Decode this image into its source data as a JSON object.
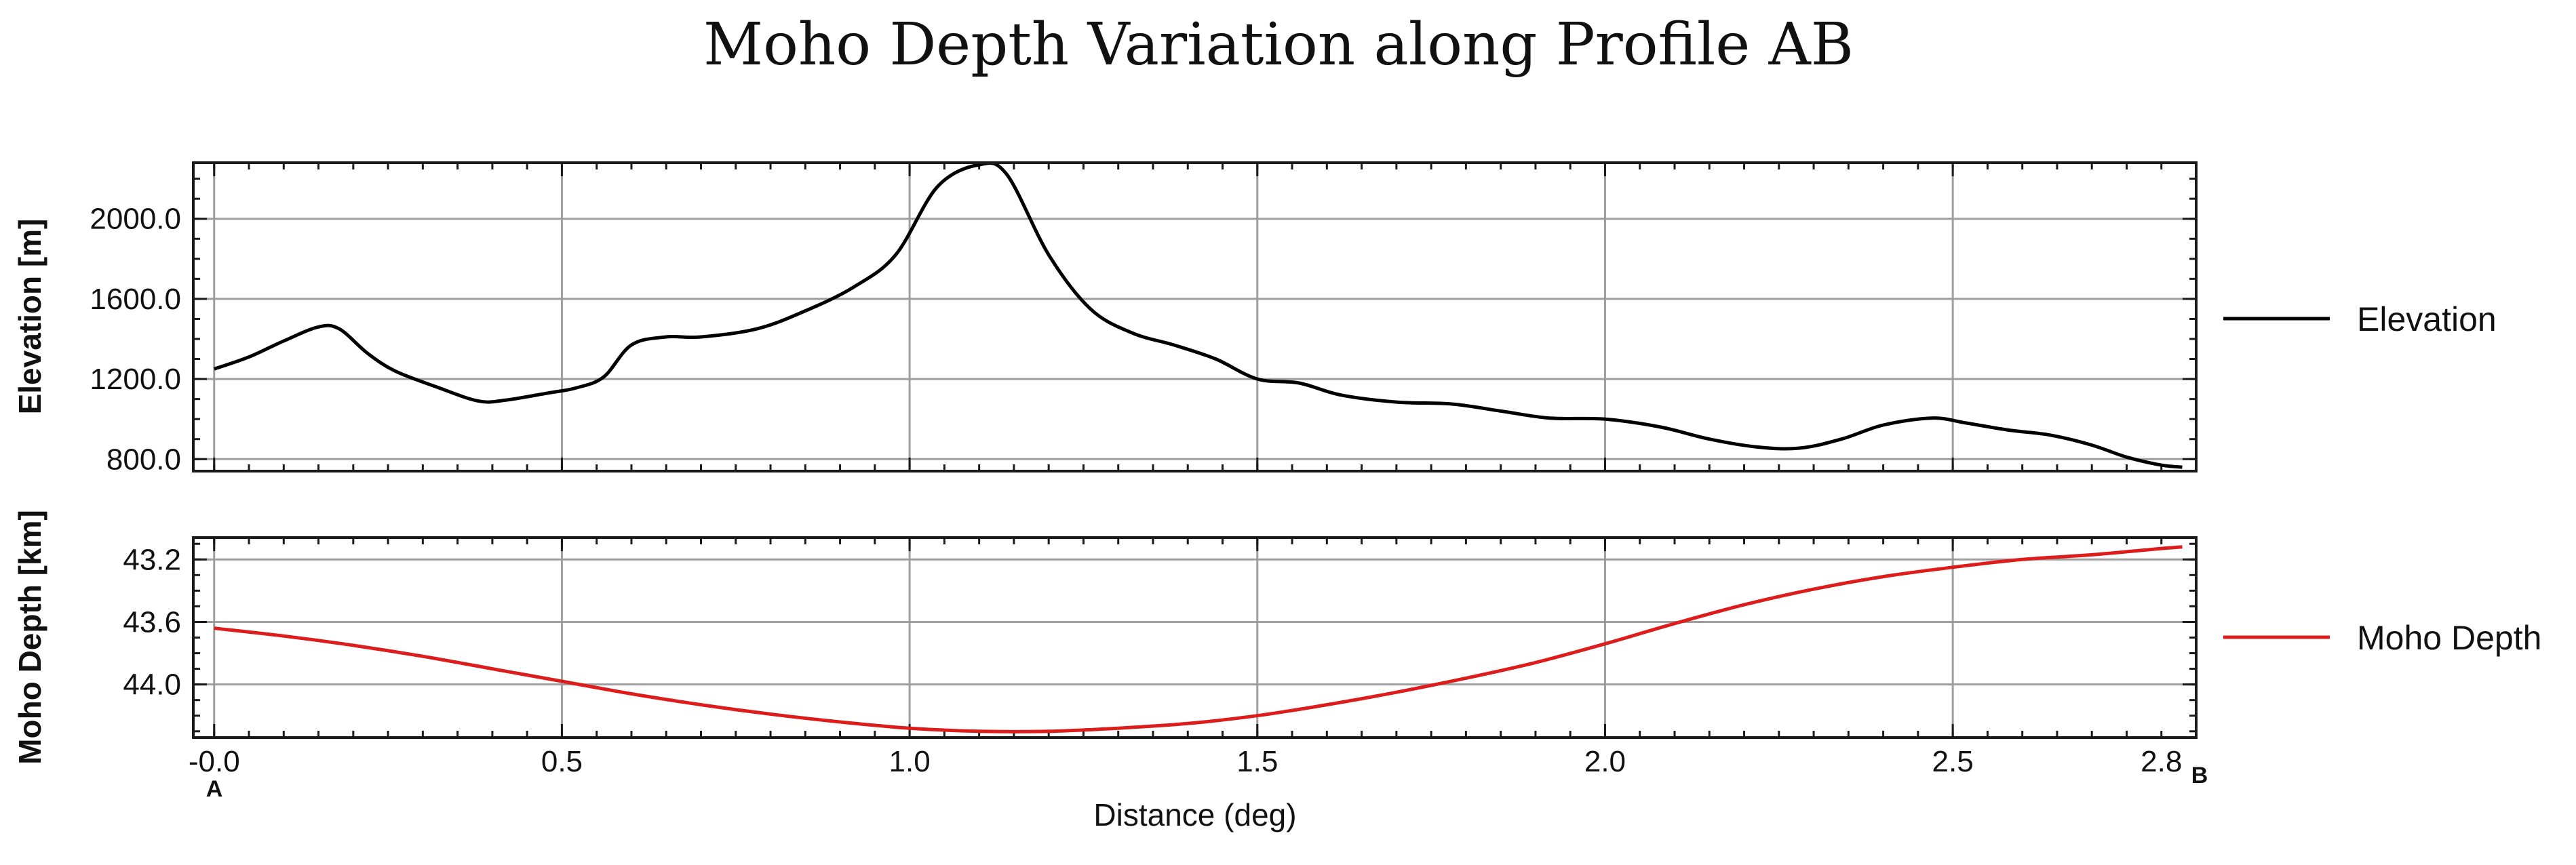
{
  "title": "Moho Depth Variation along Profile AB",
  "chart_data": [
    {
      "type": "line",
      "ylabel": "Elevation [m]",
      "xlim": [
        -0.03,
        2.85
      ],
      "ylim": [
        740,
        2280
      ],
      "yticks": [
        800,
        1200,
        1600,
        2000
      ],
      "ytick_labels": [
        "800.0",
        "1200.0",
        "1600.0",
        "2000.0"
      ],
      "grid": true,
      "legend_position": "right",
      "series": [
        {
          "name": "Elevation",
          "color": "#000000",
          "x": [
            0.0,
            0.05,
            0.1,
            0.15,
            0.18,
            0.22,
            0.26,
            0.32,
            0.38,
            0.42,
            0.48,
            0.52,
            0.56,
            0.6,
            0.65,
            0.7,
            0.78,
            0.85,
            0.92,
            0.98,
            1.04,
            1.1,
            1.14,
            1.2,
            1.26,
            1.32,
            1.38,
            1.44,
            1.5,
            1.56,
            1.62,
            1.7,
            1.78,
            1.85,
            1.92,
            2.0,
            2.08,
            2.15,
            2.22,
            2.28,
            2.34,
            2.4,
            2.47,
            2.52,
            2.58,
            2.64,
            2.7,
            2.75,
            2.8,
            2.83
          ],
          "y": [
            1250,
            1310,
            1390,
            1460,
            1450,
            1330,
            1240,
            1160,
            1090,
            1095,
            1130,
            1155,
            1210,
            1370,
            1410,
            1410,
            1450,
            1540,
            1660,
            1820,
            2160,
            2270,
            2220,
            1820,
            1550,
            1430,
            1370,
            1300,
            1200,
            1180,
            1120,
            1085,
            1075,
            1040,
            1005,
            1000,
            960,
            900,
            860,
            855,
            900,
            970,
            1005,
            980,
            945,
            920,
            870,
            810,
            770,
            760
          ]
        }
      ]
    },
    {
      "type": "line",
      "ylabel": "Moho Depth [km]",
      "xlabel": "Distance (deg)",
      "xlim": [
        -0.03,
        2.85
      ],
      "ylim": [
        44.34,
        43.06
      ],
      "y_inverted": true,
      "yticks": [
        43.2,
        43.6,
        44.0
      ],
      "ytick_labels": [
        "43.2",
        "43.6",
        "44.0"
      ],
      "xticks": [
        0.0,
        0.5,
        1.0,
        1.5,
        2.0,
        2.5,
        2.8
      ],
      "xtick_labels": [
        "-0.0",
        "0.5",
        "1.0",
        "1.5",
        "2.0",
        "2.5",
        "2.8"
      ],
      "start_label": "A",
      "end_label": "B",
      "grid": true,
      "legend_position": "right",
      "series": [
        {
          "name": "Moho Depth",
          "color": "#dd1c1c",
          "x": [
            0.0,
            0.1,
            0.2,
            0.3,
            0.4,
            0.5,
            0.6,
            0.7,
            0.8,
            0.9,
            1.0,
            1.1,
            1.2,
            1.3,
            1.4,
            1.5,
            1.6,
            1.7,
            1.8,
            1.9,
            2.0,
            2.1,
            2.2,
            2.3,
            2.4,
            2.5,
            2.6,
            2.7,
            2.8,
            2.83
          ],
          "y": [
            43.64,
            43.69,
            43.75,
            43.82,
            43.9,
            43.98,
            44.06,
            44.13,
            44.19,
            44.24,
            44.28,
            44.3,
            44.3,
            44.28,
            44.25,
            44.2,
            44.13,
            44.05,
            43.96,
            43.86,
            43.74,
            43.61,
            43.49,
            43.39,
            43.31,
            43.25,
            43.2,
            43.17,
            43.13,
            43.12
          ]
        }
      ]
    }
  ]
}
